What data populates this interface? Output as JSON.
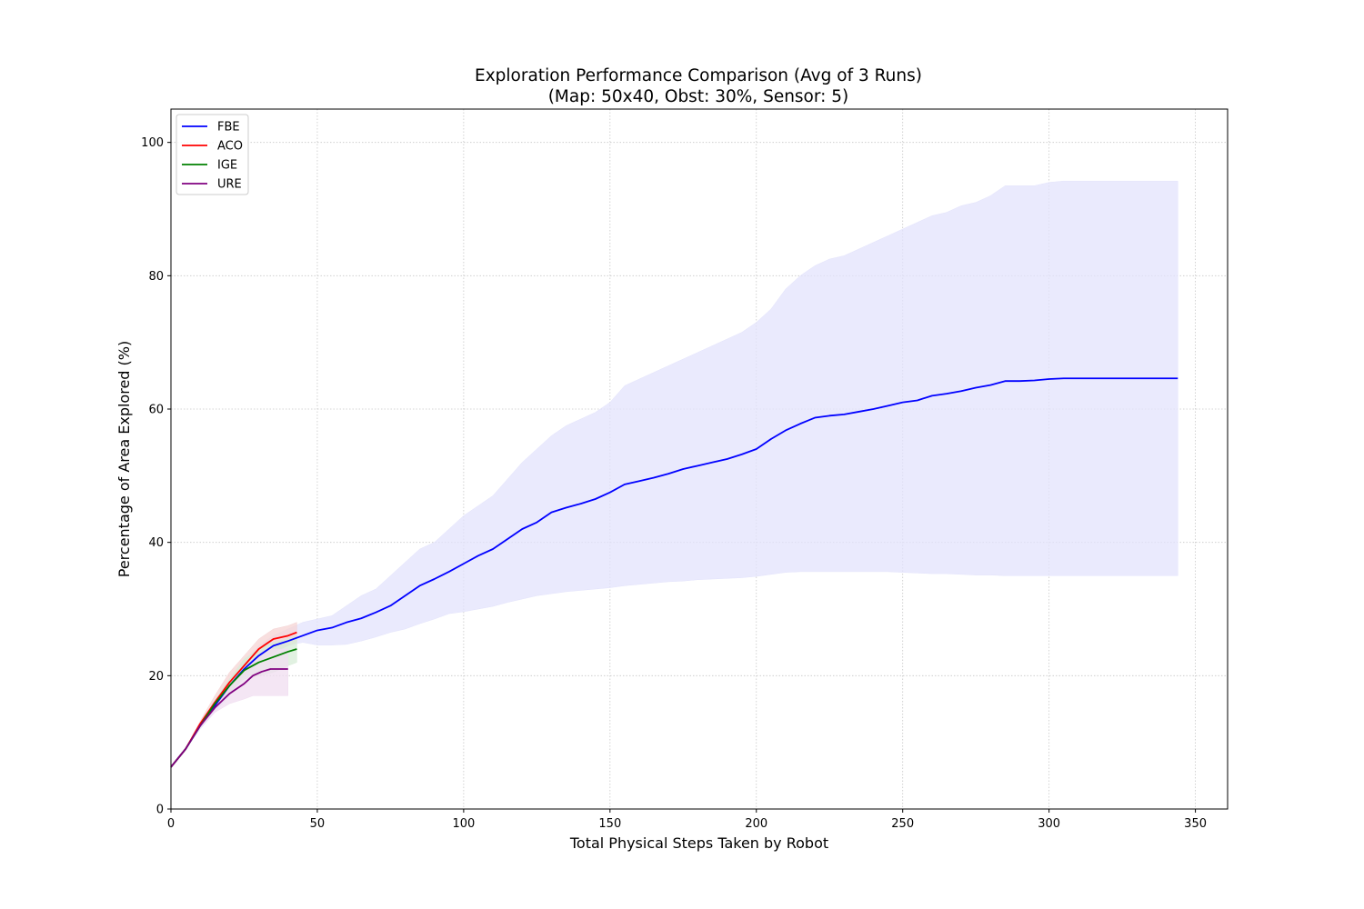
{
  "chart_data": {
    "type": "line",
    "title": "Exploration Performance Comparison (Avg of 3 Runs)",
    "subtitle": "(Map: 50x40, Obst: 30%, Sensor: 5)",
    "xlabel": "Total Physical Steps Taken by Robot",
    "ylabel": "Percentage of Area Explored (%)",
    "xlim": [
      0,
      361
    ],
    "ylim": [
      0,
      105
    ],
    "xticks": [
      0,
      50,
      100,
      150,
      200,
      250,
      300,
      350
    ],
    "yticks": [
      0,
      20,
      40,
      60,
      80,
      100
    ],
    "grid": true,
    "legend_position": "top-left",
    "series": [
      {
        "name": "FBE",
        "color": "#0000ff",
        "band_color": "#e3e3fc",
        "x": [
          0,
          5,
          10,
          15,
          20,
          25,
          30,
          35,
          40,
          45,
          50,
          55,
          60,
          65,
          70,
          75,
          80,
          85,
          90,
          95,
          100,
          105,
          110,
          115,
          120,
          125,
          130,
          135,
          140,
          145,
          150,
          155,
          160,
          165,
          170,
          175,
          180,
          185,
          190,
          195,
          200,
          205,
          210,
          215,
          220,
          225,
          230,
          235,
          240,
          245,
          250,
          255,
          260,
          265,
          270,
          275,
          280,
          285,
          290,
          295,
          300,
          305,
          310,
          320,
          330,
          344
        ],
        "mean": [
          6.3,
          9,
          12.5,
          15.5,
          18.5,
          21,
          23,
          24.5,
          25.2,
          26,
          26.8,
          27.2,
          28,
          28.6,
          29.5,
          30.5,
          32,
          33.5,
          34.5,
          35.6,
          36.8,
          38,
          39,
          40.5,
          42,
          43,
          44.5,
          45.2,
          45.8,
          46.5,
          47.5,
          48.7,
          49.2,
          49.7,
          50.3,
          51,
          51.5,
          52,
          52.5,
          53.2,
          54,
          55.5,
          56.8,
          57.8,
          58.7,
          59,
          59.2,
          59.6,
          60,
          60.5,
          61,
          61.3,
          62,
          62.3,
          62.7,
          63.2,
          63.6,
          64.2,
          64.2,
          64.3,
          64.5,
          64.6,
          64.6,
          64.6,
          64.6,
          64.6
        ],
        "upper": [
          6.3,
          9,
          12.5,
          16,
          19.5,
          22,
          24.5,
          26,
          27,
          28,
          28.5,
          29,
          30.5,
          32,
          33,
          35,
          37,
          39,
          40,
          42,
          44,
          45.5,
          47,
          49.5,
          52,
          54,
          56,
          57.5,
          58.5,
          59.5,
          61,
          63.5,
          64.5,
          65.5,
          66.5,
          67.5,
          68.5,
          69.5,
          70.5,
          71.5,
          73,
          75,
          78,
          80,
          81.5,
          82.5,
          83,
          84,
          85,
          86,
          87,
          88,
          89,
          89.5,
          90.5,
          91,
          92,
          93.5,
          93.5,
          93.5,
          94,
          94.2,
          94.2,
          94.2,
          94.2,
          94.2
        ],
        "lower": [
          6.3,
          9,
          12,
          14.5,
          17,
          20,
          22,
          23.5,
          24.5,
          25,
          24.6,
          24.6,
          24.7,
          25.2,
          25.8,
          26.5,
          27,
          27.8,
          28.5,
          29.3,
          29.6,
          30,
          30.4,
          31,
          31.5,
          32,
          32.3,
          32.6,
          32.8,
          33,
          33.2,
          33.5,
          33.7,
          33.9,
          34.1,
          34.2,
          34.4,
          34.5,
          34.6,
          34.7,
          34.9,
          35.2,
          35.5,
          35.6,
          35.6,
          35.6,
          35.6,
          35.6,
          35.6,
          35.6,
          35.5,
          35.4,
          35.3,
          35.3,
          35.2,
          35.1,
          35.1,
          35,
          35,
          35,
          35,
          35,
          35,
          35,
          35,
          35
        ]
      },
      {
        "name": "ACO",
        "color": "#ff0000",
        "band_color": "#f5d4d4",
        "x": [
          0,
          5,
          10,
          15,
          20,
          25,
          30,
          35,
          40,
          43
        ],
        "mean": [
          6.3,
          9,
          12.8,
          16,
          19,
          21.5,
          24,
          25.5,
          26,
          26.5
        ],
        "upper": [
          6.3,
          9,
          13.2,
          17,
          20.5,
          23,
          25.5,
          27,
          27.5,
          28
        ],
        "lower": [
          6.3,
          9,
          12.3,
          15.2,
          17.8,
          20,
          22,
          23.5,
          24.5,
          25
        ]
      },
      {
        "name": "IGE",
        "color": "#008000",
        "band_color": "#d7ecd7",
        "x": [
          0,
          5,
          10,
          15,
          20,
          25,
          30,
          35,
          40,
          43
        ],
        "mean": [
          6.3,
          9,
          12.5,
          15.8,
          18.5,
          20.8,
          22,
          22.8,
          23.6,
          24
        ],
        "upper": [
          6.3,
          9,
          12.8,
          16.3,
          19.5,
          22.5,
          24,
          25,
          25.5,
          26
        ],
        "lower": [
          6.3,
          9,
          12.2,
          15.2,
          17.5,
          19.5,
          20,
          20.5,
          21.5,
          22
        ]
      },
      {
        "name": "URE",
        "color": "#800080",
        "band_color": "#f0ddf0",
        "x": [
          0,
          5,
          10,
          15,
          20,
          25,
          28,
          31,
          34,
          37,
          40
        ],
        "mean": [
          6.3,
          9,
          12.5,
          15.2,
          17.3,
          18.8,
          20,
          20.6,
          21,
          21,
          21
        ],
        "upper": [
          6.3,
          9,
          12.8,
          16,
          18.5,
          20.5,
          22,
          23.5,
          24,
          24,
          24
        ],
        "lower": [
          6.3,
          9,
          12.2,
          14.5,
          15.8,
          16.5,
          17,
          17,
          17,
          17,
          17
        ]
      }
    ]
  }
}
